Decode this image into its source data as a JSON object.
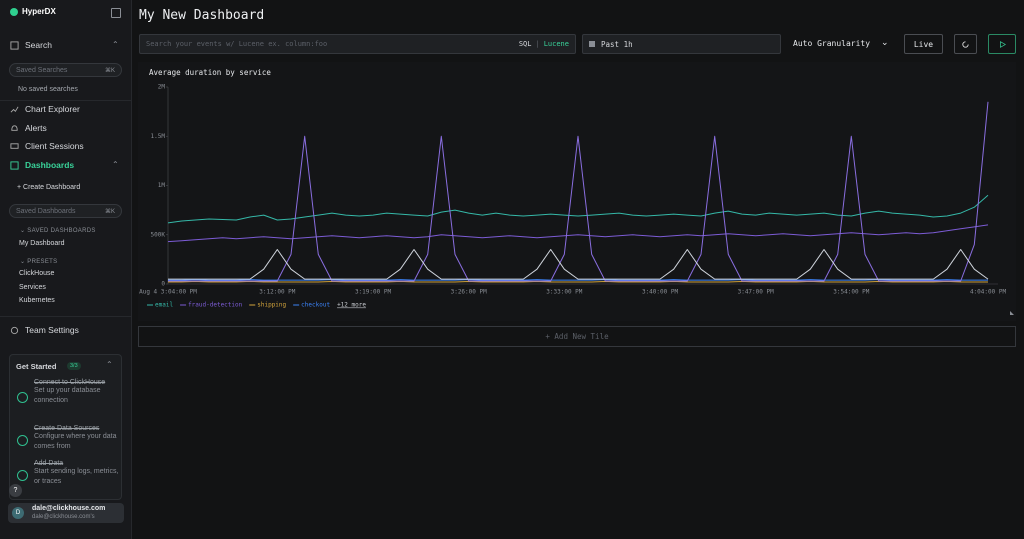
{
  "sidebar": {
    "brand": "HyperDX",
    "search": {
      "title": "Search",
      "placeholder": "Saved Searches",
      "shortcut": "⌘K",
      "empty": "No saved searches"
    },
    "nav": [
      "Chart Explorer",
      "Alerts",
      "Client Sessions"
    ],
    "dashboards": {
      "title": "Dashboards",
      "create": "+ Create Dashboard",
      "placeholder": "Saved Dashboards",
      "shortcut": "⌘K",
      "saved_heading": "SAVED DASHBOARDS",
      "saved": [
        "My Dashboard"
      ],
      "presets_heading": "PRESETS",
      "presets": [
        "ClickHouse",
        "Services",
        "Kubernetes"
      ]
    },
    "team_settings": "Team Settings",
    "get_started": {
      "title": "Get Started",
      "badge": "3/3",
      "steps": [
        {
          "title": "Connect to ClickHouse",
          "desc": "Set up your database connection"
        },
        {
          "title": "Create Data Sources",
          "desc": "Configure where your data comes from"
        },
        {
          "title": "Add Data",
          "desc": "Start sending logs, metrics, or traces"
        }
      ]
    },
    "help": "?",
    "user": {
      "initial": "D",
      "name": "dale@clickhouse.com",
      "email": "dale@clickhouse.com's"
    }
  },
  "header": {
    "title": "My New Dashboard"
  },
  "toolbar": {
    "search_placeholder": "Search your events w/ Lucene ex. column:foo",
    "sql": "SQL",
    "separator": "|",
    "lucene": "Lucene",
    "time_range": "Past 1h",
    "granularity": "Auto Granularity",
    "live": "Live"
  },
  "chart_data": {
    "type": "line",
    "title": "Average duration by service",
    "categories": [
      "Aug 4 3:04:00 PM",
      null,
      null,
      null,
      null,
      null,
      null,
      null,
      "3:12:00 PM",
      null,
      null,
      null,
      null,
      null,
      null,
      "3:19:00 PM",
      null,
      null,
      null,
      null,
      null,
      null,
      "3:26:00 PM",
      null,
      null,
      null,
      null,
      null,
      null,
      "3:33:00 PM",
      null,
      null,
      null,
      null,
      null,
      null,
      "3:40:00 PM",
      null,
      null,
      null,
      null,
      null,
      null,
      "3:47:00 PM",
      null,
      null,
      null,
      null,
      null,
      null,
      "3:54:00 PM",
      null,
      null,
      null,
      null,
      null,
      null,
      null,
      null,
      null,
      "4:04:00 PM"
    ],
    "ylim": [
      0,
      2000000
    ],
    "yticks": [
      0,
      {
        "value": 500000,
        "label": "500K"
      },
      {
        "value": 1000000,
        "label": "1M"
      },
      {
        "value": 1500000,
        "label": "1.5M"
      },
      {
        "value": 2000000,
        "label": "2M"
      }
    ],
    "grid": false,
    "series": [
      {
        "name": "email",
        "color": "#35b8a8",
        "values": [
          620000,
          640000,
          650000,
          660000,
          655000,
          650000,
          680000,
          700000,
          650000,
          660000,
          680000,
          700000,
          720000,
          700000,
          690000,
          700000,
          720000,
          710000,
          700000,
          690000,
          730000,
          750000,
          720000,
          700000,
          720000,
          700000,
          690000,
          700000,
          710000,
          700000,
          690000,
          700000,
          710000,
          720000,
          700000,
          690000,
          700000,
          710000,
          700000,
          690000,
          720000,
          740000,
          710000,
          700000,
          720000,
          710000,
          700000,
          710000,
          720000,
          700000,
          690000,
          720000,
          740000,
          720000,
          710000,
          700000,
          680000,
          690000,
          720000,
          780000,
          900000
        ]
      },
      {
        "name": "fraud-detection",
        "color": "#7c5cd6",
        "values": [
          430000,
          440000,
          450000,
          460000,
          470000,
          460000,
          470000,
          480000,
          470000,
          460000,
          470000,
          480000,
          490000,
          480000,
          470000,
          480000,
          490000,
          480000,
          470000,
          480000,
          500000,
          490000,
          480000,
          470000,
          480000,
          490000,
          480000,
          470000,
          480000,
          490000,
          500000,
          490000,
          480000,
          490000,
          500000,
          490000,
          480000,
          490000,
          500000,
          490000,
          500000,
          510000,
          500000,
          490000,
          500000,
          510000,
          500000,
          490000,
          500000,
          510000,
          520000,
          510000,
          500000,
          510000,
          520000,
          510000,
          520000,
          540000,
          560000,
          580000,
          600000
        ]
      },
      {
        "name": "shipping",
        "color": "#d4a53c",
        "values": [
          20000,
          20000,
          25000,
          20000,
          20000,
          20000,
          25000,
          20000,
          20000,
          20000,
          20000,
          20000,
          25000,
          20000,
          20000,
          20000,
          20000,
          25000,
          20000,
          20000,
          20000,
          20000,
          25000,
          20000,
          20000,
          20000,
          20000,
          25000,
          20000,
          20000,
          20000,
          20000,
          25000,
          20000,
          20000,
          20000,
          20000,
          25000,
          20000,
          20000,
          20000,
          20000,
          25000,
          20000,
          20000,
          20000,
          20000,
          25000,
          20000,
          20000,
          20000,
          20000,
          25000,
          20000,
          20000,
          20000,
          20000,
          25000,
          20000,
          20000,
          20000
        ]
      },
      {
        "name": "checkout",
        "color": "#3b82f6",
        "values": [
          40000,
          40000,
          45000,
          40000,
          40000,
          40000,
          45000,
          40000,
          40000,
          40000,
          40000,
          40000,
          45000,
          40000,
          40000,
          40000,
          40000,
          45000,
          40000,
          40000,
          40000,
          40000,
          45000,
          40000,
          40000,
          40000,
          40000,
          45000,
          40000,
          40000,
          40000,
          40000,
          45000,
          40000,
          40000,
          40000,
          40000,
          45000,
          40000,
          40000,
          40000,
          40000,
          45000,
          40000,
          40000,
          40000,
          40000,
          45000,
          40000,
          40000,
          40000,
          40000,
          45000,
          40000,
          40000,
          40000,
          40000,
          45000,
          40000,
          40000,
          40000
        ]
      },
      {
        "color": "#8a6ee0",
        "values": [
          30000,
          30000,
          30000,
          30000,
          30000,
          30000,
          30000,
          30000,
          30000,
          300000,
          1500000,
          300000,
          30000,
          30000,
          30000,
          30000,
          30000,
          30000,
          30000,
          300000,
          1500000,
          300000,
          30000,
          30000,
          30000,
          30000,
          30000,
          30000,
          30000,
          300000,
          1500000,
          300000,
          30000,
          30000,
          30000,
          30000,
          30000,
          30000,
          30000,
          300000,
          1500000,
          300000,
          30000,
          30000,
          30000,
          30000,
          30000,
          30000,
          30000,
          300000,
          1500000,
          300000,
          30000,
          30000,
          30000,
          30000,
          30000,
          30000,
          30000,
          400000,
          1850000
        ]
      },
      {
        "color": "#cfd4dc",
        "values": [
          50000,
          50000,
          50000,
          50000,
          50000,
          50000,
          50000,
          150000,
          350000,
          150000,
          50000,
          50000,
          50000,
          50000,
          50000,
          50000,
          50000,
          150000,
          350000,
          150000,
          50000,
          50000,
          50000,
          50000,
          50000,
          50000,
          50000,
          150000,
          350000,
          150000,
          50000,
          50000,
          50000,
          50000,
          50000,
          50000,
          50000,
          150000,
          350000,
          150000,
          50000,
          50000,
          50000,
          50000,
          50000,
          50000,
          50000,
          150000,
          350000,
          150000,
          50000,
          50000,
          50000,
          50000,
          50000,
          50000,
          50000,
          150000,
          350000,
          150000,
          50000
        ]
      }
    ],
    "more": "+12 more"
  },
  "add_tile": "+ Add New Tile"
}
